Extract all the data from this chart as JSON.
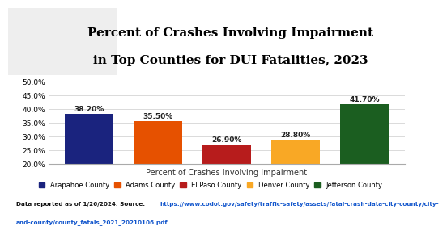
{
  "title_line1": "Percent of Crashes Involving Impairment",
  "title_line2": "in Top Counties for DUI Fatalities, 2023",
  "counties": [
    "Arapahoe County",
    "Adams County",
    "El Paso County",
    "Denver County",
    "Jefferson County"
  ],
  "values": [
    38.2,
    35.5,
    26.9,
    28.8,
    41.7
  ],
  "bar_colors": [
    "#1a237e",
    "#e65100",
    "#b71c1c",
    "#f9a825",
    "#1b5e20"
  ],
  "xlabel": "Percent of Crashes Involving Impairment",
  "ylim": [
    20.0,
    50.0
  ],
  "yticks": [
    20.0,
    25.0,
    30.0,
    35.0,
    40.0,
    45.0,
    50.0
  ],
  "bar_label_fontsize": 6.5,
  "axis_fontsize": 6.5,
  "legend_fontsize": 6.0,
  "xlabel_fontsize": 7.0,
  "footer_normal": "Data reported as of 1/26/2024. Source: ",
  "footer_link": "https://www.codot.gov/safety/traffic-safety/assets/fatal-crash-data-city-county/city-\nand-county/county_fatals_2021_20210106.pdf",
  "header_bg": "#eeeeee",
  "header_orange_line": "#e87722",
  "chart_bg": "#ffffff",
  "grid_color": "#cccccc",
  "title_fontsize": 11,
  "orange_line_color": "#e87722"
}
